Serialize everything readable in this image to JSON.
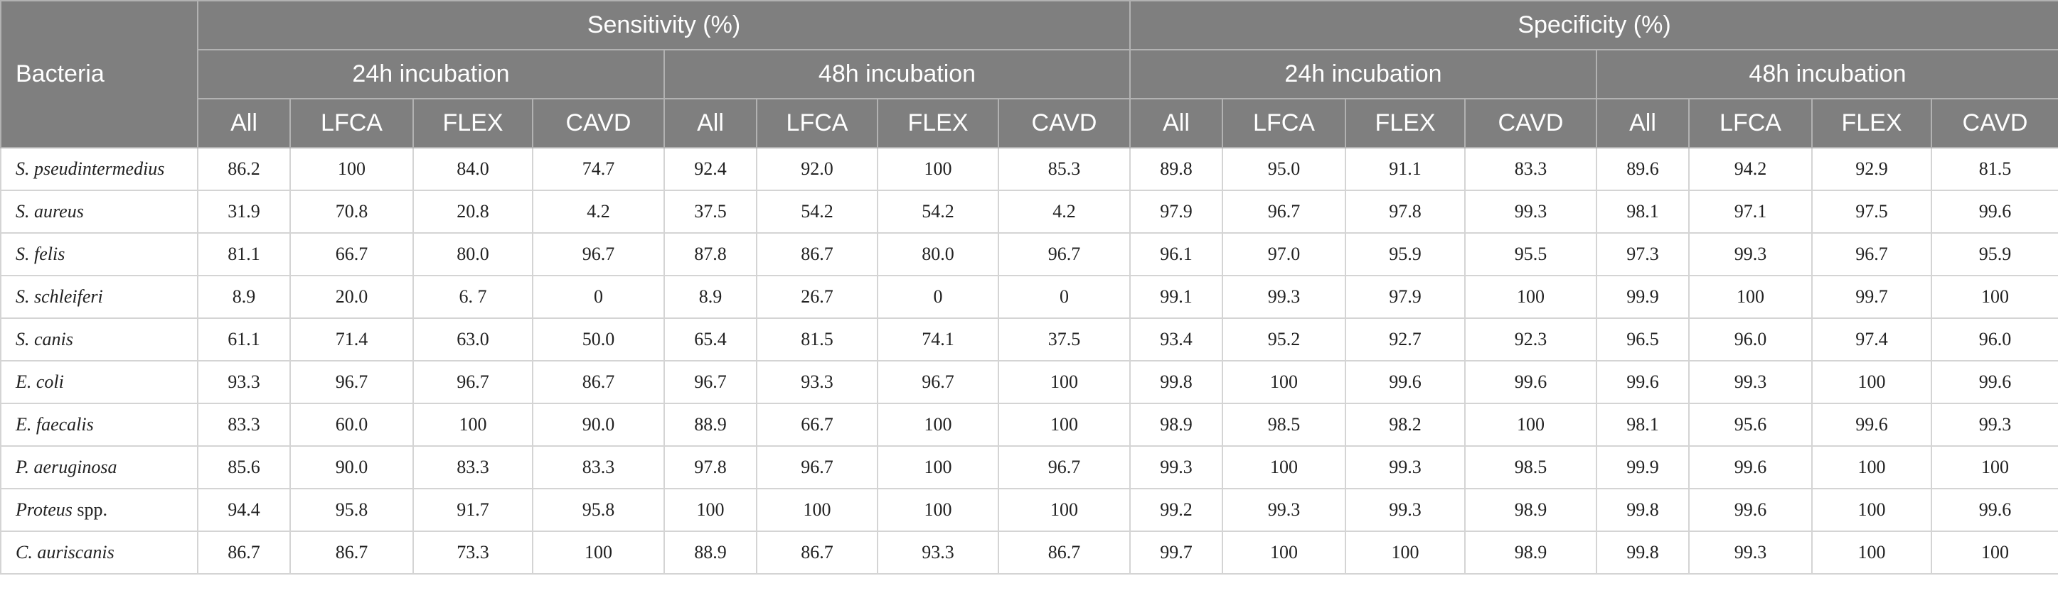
{
  "header": {
    "bacteria": "Bacteria",
    "groups": [
      "Sensitivity (%)",
      "Specificity (%)"
    ],
    "incubations": [
      "24h incubation",
      "48h incubation",
      "24h incubation",
      "48h incubation"
    ],
    "methods": [
      "All",
      "LFCA",
      "FLEX",
      "CAVD",
      "All",
      "LFCA",
      "FLEX",
      "CAVD",
      "All",
      "LFCA",
      "FLEX",
      "CAVD",
      "All",
      "LFCA",
      "FLEX",
      "CAVD"
    ]
  },
  "rows": [
    {
      "name": "S. pseudintermedius",
      "suffix": "",
      "values": [
        "86.2",
        "100",
        "84.0",
        "74.7",
        "92.4",
        "92.0",
        "100",
        "85.3",
        "89.8",
        "95.0",
        "91.1",
        "83.3",
        "89.6",
        "94.2",
        "92.9",
        "81.5"
      ]
    },
    {
      "name": "S. aureus",
      "suffix": "",
      "values": [
        "31.9",
        "70.8",
        "20.8",
        "4.2",
        "37.5",
        "54.2",
        "54.2",
        "4.2",
        "97.9",
        "96.7",
        "97.8",
        "99.3",
        "98.1",
        "97.1",
        "97.5",
        "99.6"
      ]
    },
    {
      "name": "S. felis",
      "suffix": "",
      "values": [
        "81.1",
        "66.7",
        "80.0",
        "96.7",
        "87.8",
        "86.7",
        "80.0",
        "96.7",
        "96.1",
        "97.0",
        "95.9",
        "95.5",
        "97.3",
        "99.3",
        "96.7",
        "95.9"
      ]
    },
    {
      "name": "S. schleiferi",
      "suffix": "",
      "values": [
        "8.9",
        "20.0",
        "6. 7",
        "0",
        "8.9",
        "26.7",
        "0",
        "0",
        "99.1",
        "99.3",
        "97.9",
        "100",
        "99.9",
        "100",
        "99.7",
        "100"
      ]
    },
    {
      "name": "S. canis",
      "suffix": "",
      "values": [
        "61.1",
        "71.4",
        "63.0",
        "50.0",
        "65.4",
        "81.5",
        "74.1",
        "37.5",
        "93.4",
        "95.2",
        "92.7",
        "92.3",
        "96.5",
        "96.0",
        "97.4",
        "96.0"
      ]
    },
    {
      "name": "E. coli",
      "suffix": "",
      "values": [
        "93.3",
        "96.7",
        "96.7",
        "86.7",
        "96.7",
        "93.3",
        "96.7",
        "100",
        "99.8",
        "100",
        "99.6",
        "99.6",
        "99.6",
        "99.3",
        "100",
        "99.6"
      ]
    },
    {
      "name": "E. faecalis",
      "suffix": "",
      "values": [
        "83.3",
        "60.0",
        "100",
        "90.0",
        "88.9",
        "66.7",
        "100",
        "100",
        "98.9",
        "98.5",
        "98.2",
        "100",
        "98.1",
        "95.6",
        "99.6",
        "99.3"
      ]
    },
    {
      "name": "P. aeruginosa",
      "suffix": "",
      "values": [
        "85.6",
        "90.0",
        "83.3",
        "83.3",
        "97.8",
        "96.7",
        "100",
        "96.7",
        "99.3",
        "100",
        "99.3",
        "98.5",
        "99.9",
        "99.6",
        "100",
        "100"
      ]
    },
    {
      "name": "Proteus",
      "suffix": " spp.",
      "values": [
        "94.4",
        "95.8",
        "91.7",
        "95.8",
        "100",
        "100",
        "100",
        "100",
        "99.2",
        "99.3",
        "99.3",
        "98.9",
        "99.8",
        "99.6",
        "100",
        "99.6"
      ]
    },
    {
      "name": "C. auriscanis",
      "suffix": "",
      "values": [
        "86.7",
        "86.7",
        "73.3",
        "100",
        "88.9",
        "86.7",
        "93.3",
        "86.7",
        "99.7",
        "100",
        "100",
        "98.9",
        "99.8",
        "99.3",
        "100",
        "100"
      ]
    }
  ]
}
